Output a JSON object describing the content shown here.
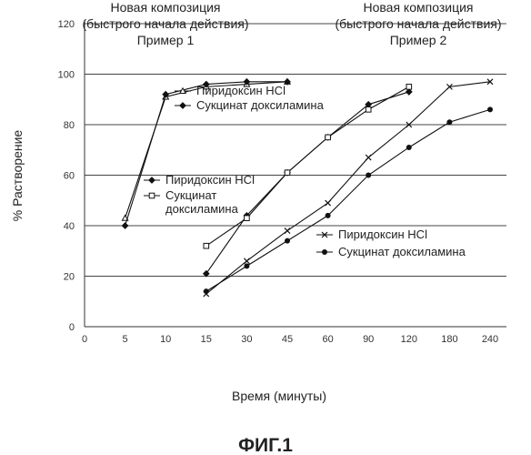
{
  "chart_data": {
    "type": "line",
    "title": "",
    "xlabel": "Время (минуты)",
    "ylabel": "% Растворение",
    "figure_caption": "ФИГ.1",
    "x_ticks": [
      "0",
      "5",
      "10",
      "15",
      "30",
      "45",
      "60",
      "90",
      "120",
      "180",
      "240"
    ],
    "y_ticks": [
      "0",
      "20",
      "40",
      "60",
      "80",
      "100",
      "120"
    ],
    "ylim": [
      0,
      120
    ],
    "grid": "horizontal",
    "panel_titles": [
      {
        "lines": [
          "Новая композиция",
          "(быстрого начала действия)",
          "Пример 1"
        ]
      },
      {
        "lines": [
          "Новая композиция",
          "(быстрого начала действия)",
          "Пример 2"
        ]
      }
    ],
    "legend_groups": [
      {
        "placement": "top-center",
        "entries": [
          {
            "series": 0,
            "lines": [
              "Пиридоксин HCl"
            ]
          },
          {
            "series": 1,
            "lines": [
              "Сукцинат доксиламина"
            ]
          }
        ]
      },
      {
        "placement": "center-left",
        "entries": [
          {
            "series": 2,
            "lines": [
              "Пиридоксин HCl"
            ]
          },
          {
            "series": 3,
            "lines": [
              "Сукцинат",
              "доксиламина"
            ]
          }
        ]
      },
      {
        "placement": "bottom-right",
        "entries": [
          {
            "series": 4,
            "lines": [
              "Пиридоксин HCl"
            ]
          },
          {
            "series": 5,
            "lines": [
              "Сукцинат  доксиламина"
            ]
          }
        ]
      }
    ],
    "series": [
      {
        "name": "Пиридоксин HCl",
        "marker": "triangle-open",
        "points": [
          [
            "5",
            43
          ],
          [
            "10",
            91
          ],
          [
            "15",
            95
          ],
          [
            "30",
            96
          ],
          [
            "45",
            97
          ]
        ]
      },
      {
        "name": "Сукцинат доксиламина",
        "marker": "diamond-filled",
        "points": [
          [
            "5",
            40
          ],
          [
            "10",
            92
          ],
          [
            "15",
            96
          ],
          [
            "30",
            97
          ],
          [
            "45",
            97
          ]
        ]
      },
      {
        "name": "Пиридоксин HCl",
        "marker": "diamond-filled",
        "points": [
          [
            "15",
            21
          ],
          [
            "30",
            44
          ],
          [
            "45",
            61
          ],
          [
            "60",
            75
          ],
          [
            "90",
            88
          ],
          [
            "120",
            93
          ]
        ]
      },
      {
        "name": "Сукцинат доксиламина",
        "marker": "square-open",
        "points": [
          [
            "15",
            32
          ],
          [
            "30",
            43
          ],
          [
            "45",
            61
          ],
          [
            "60",
            75
          ],
          [
            "90",
            86
          ],
          [
            "120",
            95
          ]
        ]
      },
      {
        "name": "Пиридоксин HCl",
        "marker": "x",
        "points": [
          [
            "15",
            13
          ],
          [
            "30",
            26
          ],
          [
            "45",
            38
          ],
          [
            "60",
            49
          ],
          [
            "90",
            67
          ],
          [
            "120",
            80
          ],
          [
            "180",
            95
          ],
          [
            "240",
            97
          ]
        ]
      },
      {
        "name": "Сукцинат доксиламина",
        "marker": "circle-filled",
        "points": [
          [
            "15",
            14
          ],
          [
            "30",
            24
          ],
          [
            "45",
            34
          ],
          [
            "60",
            44
          ],
          [
            "90",
            60
          ],
          [
            "120",
            71
          ],
          [
            "180",
            81
          ],
          [
            "240",
            86
          ]
        ]
      }
    ]
  }
}
